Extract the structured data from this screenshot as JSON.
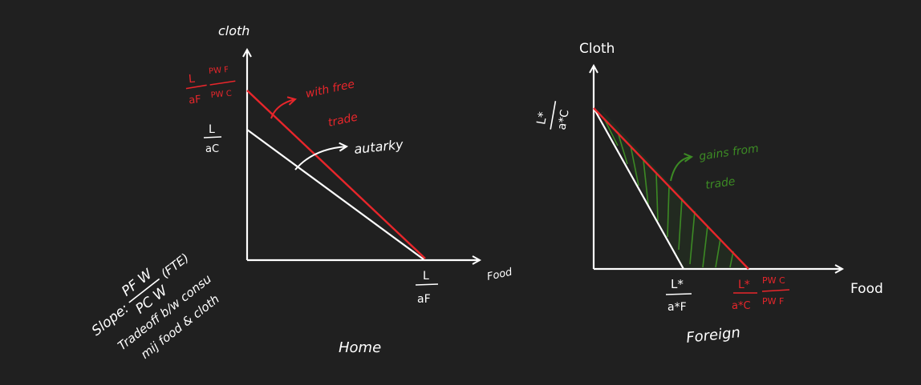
{
  "colors": {
    "background": "#202020",
    "ink": "#ffffff",
    "free_trade": "#e8262b",
    "gains": "#3c8a24"
  },
  "home": {
    "caption": "Home",
    "y_axis_label": "cloth",
    "x_axis_label": "Food",
    "free_trade_intercept": {
      "num": "L",
      "den": "aF",
      "ratio_num": "PW F",
      "ratio_den": "PW C"
    },
    "autarky_intercept": {
      "num": "L",
      "den": "aC"
    },
    "x_intercept": {
      "num": "L",
      "den": "aF"
    },
    "free_trade_label_1": "with free",
    "free_trade_label_2": "trade",
    "autarky_label": "autarky",
    "slope_note": {
      "line1_prefix": "Slope:",
      "ratio_num": "PF W",
      "ratio_den": "PC W",
      "qualifier": "(FTE)",
      "line2": "Tradeoff b/w consu",
      "line3": "mij food & cloth"
    }
  },
  "foreign": {
    "caption": "Foreign",
    "y_axis_label": "Cloth",
    "x_axis_label": "Food",
    "y_intercept": {
      "num": "L*",
      "den": "a*C"
    },
    "autarky_x_intercept": {
      "num": "L*",
      "den": "a*F"
    },
    "free_trade_x_intercept": {
      "num": "L*",
      "den": "a*C",
      "ratio_num": "PW C",
      "ratio_den": "PW F"
    },
    "gains_label_1": "gains from",
    "gains_label_2": "trade"
  }
}
